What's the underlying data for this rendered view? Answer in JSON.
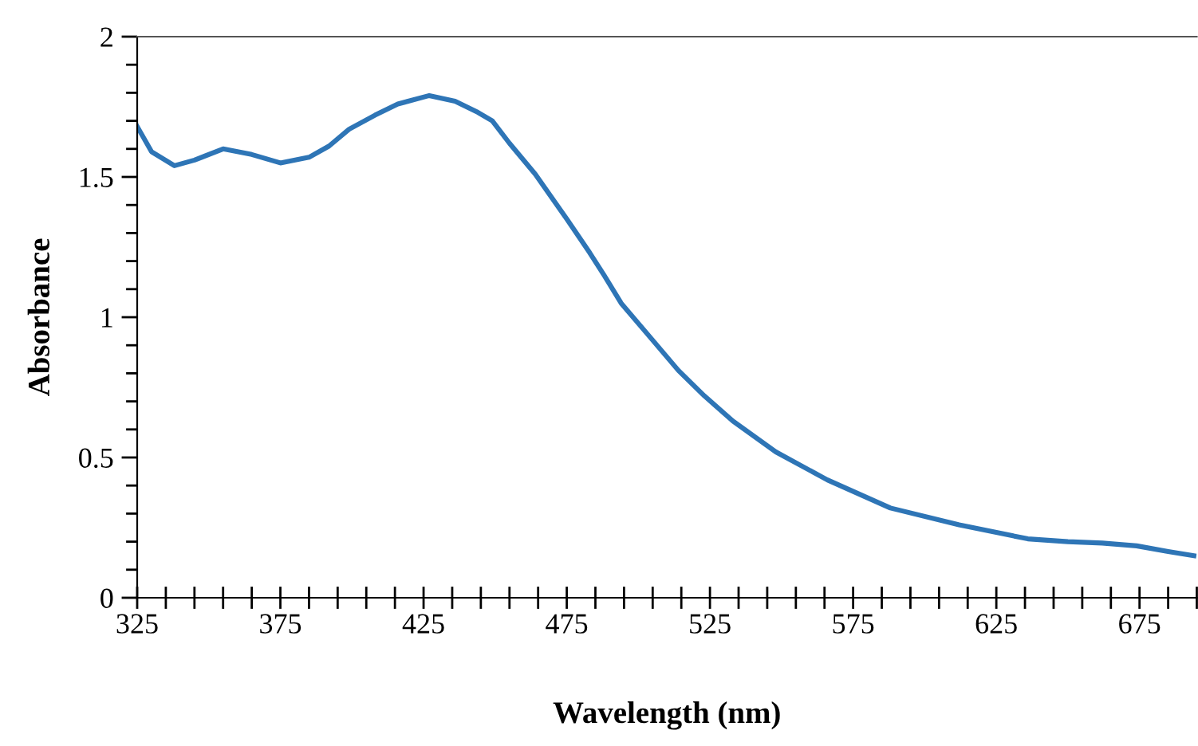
{
  "chart_data": {
    "type": "line",
    "xlabel": "Wavelength (nm)",
    "ylabel": "Absorbance",
    "xlim": [
      325,
      695
    ],
    "xticks": [
      325,
      375,
      425,
      475,
      525,
      575,
      625,
      675
    ],
    "ylim": [
      0,
      2
    ],
    "yticks": [
      0,
      0.5,
      1,
      1.5,
      2
    ],
    "grid": false,
    "legend": false,
    "marker": "none",
    "line_style": "solid",
    "series": [
      {
        "color": "#2e75b6",
        "x": [
          325,
          330,
          338,
          345,
          355,
          365,
          375,
          385,
          392,
          399,
          408,
          416,
          427,
          436,
          444,
          449,
          455,
          464,
          475,
          483,
          488,
          494,
          504,
          514,
          523,
          533,
          548,
          566,
          588,
          612,
          636,
          650,
          662,
          674,
          685,
          694
        ],
        "values": [
          1.68,
          1.59,
          1.54,
          1.56,
          1.6,
          1.58,
          1.55,
          1.57,
          1.61,
          1.67,
          1.72,
          1.76,
          1.79,
          1.77,
          1.73,
          1.7,
          1.62,
          1.51,
          1.35,
          1.23,
          1.15,
          1.05,
          0.93,
          0.81,
          0.72,
          0.63,
          0.52,
          0.42,
          0.32,
          0.26,
          0.21,
          0.2,
          0.195,
          0.185,
          0.165,
          0.15
        ]
      }
    ]
  }
}
